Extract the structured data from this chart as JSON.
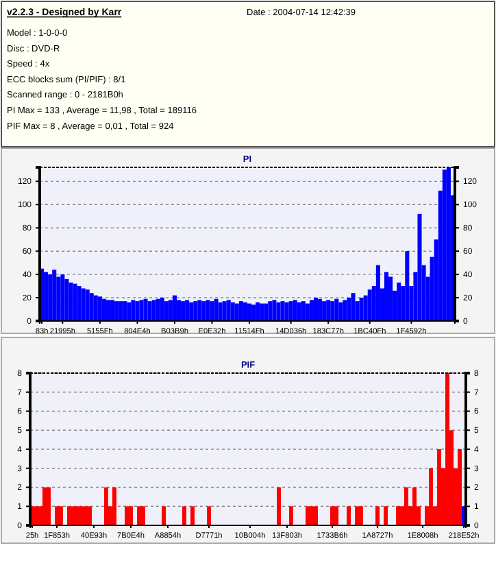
{
  "chart_data": [
    {
      "type": "other",
      "title": "v2.2.3 - Designed by Karr",
      "annotations": [
        "Date : 2004-07-14 12:42:39",
        "Model : 1-0-0-0",
        "Disc : DVD-R",
        "Speed : 4x",
        "ECC blocks sum (PI/PIF) : 8/1",
        "Scanned range : 0 - 2181B0h",
        "PI Max = 133 , Average = 11,98 , Total = 189116",
        "PIF Max = 8 , Average = 0,01 , Total = 924"
      ]
    },
    {
      "type": "bar",
      "title": "PI",
      "color": "#0000ff",
      "grid": "y",
      "ylim": [
        0,
        132
      ],
      "yticks": [
        0,
        20,
        40,
        60,
        80,
        100,
        120
      ],
      "y2lim": [
        0,
        132
      ],
      "y2ticks": [
        0,
        20,
        40,
        60,
        80,
        100,
        120
      ],
      "categories": [
        "83h",
        null,
        null,
        null,
        null,
        "21995h",
        null,
        null,
        null,
        null,
        null,
        null,
        null,
        null,
        "5155Fh",
        null,
        null,
        null,
        null,
        null,
        null,
        null,
        null,
        "804E4h",
        null,
        null,
        null,
        null,
        null,
        null,
        null,
        null,
        "B03B9h",
        null,
        null,
        null,
        null,
        null,
        null,
        null,
        null,
        "E0E32h",
        null,
        null,
        null,
        null,
        null,
        null,
        null,
        null,
        "11514Fh",
        null,
        null,
        null,
        null,
        null,
        null,
        null,
        null,
        null,
        "14D036h",
        null,
        null,
        null,
        null,
        null,
        null,
        null,
        null,
        "183C77h",
        null,
        null,
        null,
        null,
        null,
        null,
        null,
        null,
        null,
        "1BC40Fh",
        null,
        null,
        null,
        null,
        null,
        null,
        null,
        null,
        null,
        "1F4592h",
        null,
        null,
        null,
        null,
        null,
        null,
        null,
        null,
        null,
        null
      ],
      "values": [
        45,
        42,
        40,
        44,
        38,
        40,
        36,
        33,
        32,
        30,
        28,
        27,
        24,
        22,
        21,
        19,
        18,
        18,
        17,
        17,
        17,
        16,
        18,
        17,
        18,
        19,
        17,
        18,
        19,
        20,
        17,
        18,
        22,
        18,
        17,
        18,
        16,
        17,
        18,
        17,
        18,
        17,
        19,
        16,
        17,
        18,
        16,
        15,
        17,
        16,
        15,
        14,
        16,
        15,
        15,
        17,
        18,
        16,
        17,
        16,
        17,
        18,
        16,
        17,
        15,
        18,
        20,
        19,
        17,
        18,
        17,
        19,
        16,
        18,
        20,
        24,
        17,
        20,
        22,
        27,
        30,
        48,
        28,
        42,
        38,
        26,
        33,
        30,
        60,
        30,
        42,
        92,
        48,
        38,
        55,
        70,
        112,
        130,
        132,
        108
      ]
    },
    {
      "type": "bar",
      "title": "PIF",
      "grid": "y",
      "ylim": [
        0,
        8
      ],
      "yticks": [
        0,
        1,
        2,
        3,
        4,
        5,
        6,
        7,
        8
      ],
      "y2lim": [
        0,
        8
      ],
      "y2ticks": [
        0,
        1,
        2,
        3,
        4,
        5,
        6,
        7,
        8
      ],
      "categories": [
        "25h",
        null,
        null,
        null,
        null,
        null,
        "1F853h",
        null,
        null,
        null,
        null,
        null,
        null,
        null,
        null,
        "40E93h",
        null,
        null,
        null,
        null,
        null,
        null,
        null,
        null,
        "7B0E4h",
        null,
        null,
        null,
        null,
        null,
        null,
        null,
        null,
        "A8854h",
        null,
        null,
        null,
        null,
        null,
        null,
        null,
        null,
        null,
        "D7771h",
        null,
        null,
        null,
        null,
        null,
        null,
        null,
        null,
        null,
        "10B004h",
        null,
        null,
        null,
        null,
        null,
        null,
        null,
        null,
        "13F803h",
        null,
        null,
        null,
        null,
        null,
        null,
        null,
        null,
        null,
        null,
        "1733B6h",
        null,
        null,
        null,
        null,
        null,
        null,
        null,
        null,
        null,
        null,
        "1A8727h",
        null,
        null,
        null,
        null,
        null,
        null,
        null,
        null,
        null,
        null,
        "1E8008h",
        null,
        null,
        null,
        null,
        null,
        null,
        null,
        null,
        null,
        "218E52h"
      ],
      "values": [
        1,
        1,
        1,
        2,
        2,
        0,
        1,
        1,
        0,
        1,
        1,
        1,
        1,
        1,
        1,
        0,
        0,
        0,
        2,
        1,
        2,
        0,
        0,
        1,
        1,
        0,
        1,
        1,
        0,
        0,
        0,
        0,
        1,
        0,
        0,
        0,
        0,
        1,
        0,
        1,
        0,
        0,
        0,
        1,
        0,
        0,
        0,
        0,
        0,
        0,
        0,
        0,
        0,
        0,
        0,
        0,
        0,
        0,
        0,
        0,
        2,
        0,
        0,
        1,
        0,
        0,
        0,
        1,
        1,
        1,
        0,
        0,
        0,
        1,
        1,
        0,
        0,
        1,
        0,
        1,
        1,
        0,
        0,
        0,
        1,
        0,
        1,
        0,
        0,
        1,
        1,
        2,
        1,
        2,
        1,
        0,
        1,
        3,
        1,
        4,
        3,
        8,
        5,
        3,
        4,
        1
      ],
      "colors": [
        "#ff0000",
        "#ff0000",
        "#ff0000",
        "#ff0000",
        "#ff0000",
        "#ff0000",
        "#ff0000",
        "#ff0000",
        "#ff0000",
        "#ff0000",
        "#ff0000",
        "#ff0000",
        "#ff0000",
        "#ff0000",
        "#ff0000",
        "#ff0000",
        "#ff0000",
        "#ff0000",
        "#ff0000",
        "#ff0000",
        "#ff0000",
        "#ff0000",
        "#ff0000",
        "#ff0000",
        "#ff0000",
        "#ff0000",
        "#ff0000",
        "#ff0000",
        "#ff0000",
        "#ff0000",
        "#ff0000",
        "#ff0000",
        "#ff0000",
        "#ff0000",
        "#ff0000",
        "#ff0000",
        "#ff0000",
        "#ff0000",
        "#ff0000",
        "#ff0000",
        "#ff0000",
        "#ff0000",
        "#ff0000",
        "#ff0000",
        "#ff0000",
        "#ff0000",
        "#ff0000",
        "#ff0000",
        "#ff0000",
        "#ff0000",
        "#ff0000",
        "#ff0000",
        "#ff0000",
        "#ff0000",
        "#ff0000",
        "#ff0000",
        "#ff0000",
        "#ff0000",
        "#ff0000",
        "#ff0000",
        "#ff0000",
        "#ff0000",
        "#ff0000",
        "#ff0000",
        "#ff0000",
        "#ff0000",
        "#ff0000",
        "#ff0000",
        "#ff0000",
        "#ff0000",
        "#ff0000",
        "#ff0000",
        "#ff0000",
        "#ff0000",
        "#ff0000",
        "#ff0000",
        "#ff0000",
        "#ff0000",
        "#ff0000",
        "#ff0000",
        "#ff0000",
        "#ff0000",
        "#ff0000",
        "#ff0000",
        "#ff0000",
        "#ff0000",
        "#ff0000",
        "#ff0000",
        "#ff0000",
        "#ff0000",
        "#ff0000",
        "#ff0000",
        "#ff0000",
        "#ff0000",
        "#ff0000",
        "#ff0000",
        "#ff0000",
        "#ff0000",
        "#ff0000",
        "#ff0000",
        "#ff0000",
        "#ff0000",
        "#ff0000",
        "#ff0000",
        "#ff0000",
        "#0000ff"
      ]
    }
  ]
}
